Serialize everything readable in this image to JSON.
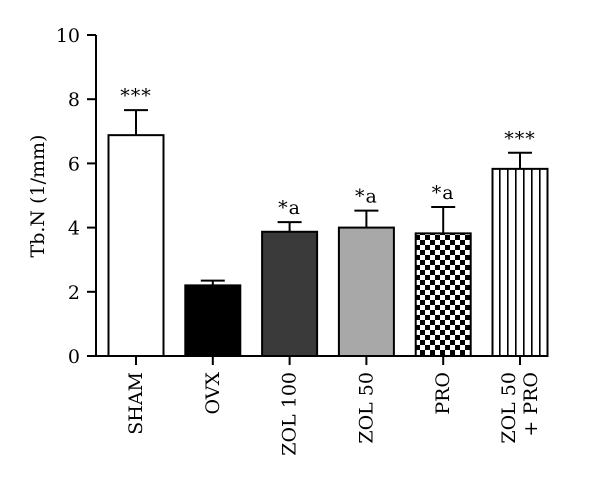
{
  "chart_data": {
    "type": "bar",
    "title": "",
    "xlabel": "",
    "ylabel": "Tb.N (1/mm)",
    "ylim": [
      0,
      10
    ],
    "yticks": [
      0,
      2,
      4,
      6,
      8,
      10
    ],
    "grid": false,
    "legend": "none",
    "categories": [
      [
        "SHAM"
      ],
      [
        "OVX"
      ],
      [
        "ZOL 100"
      ],
      [
        "ZOL 50"
      ],
      [
        "PRO"
      ],
      [
        "ZOL 50",
        "+ PRO"
      ]
    ],
    "series": [
      {
        "values": [
          6.88,
          2.2,
          3.87,
          4.0,
          3.82,
          5.83
        ],
        "errors": [
          0.78,
          0.15,
          0.3,
          0.53,
          0.82,
          0.5
        ],
        "annotations": [
          "***",
          "",
          "*a",
          "*a",
          "*a",
          "***"
        ],
        "fills": [
          "white",
          "black",
          "dark-gray",
          "light-gray",
          "checkerboard",
          "vertical-stripes"
        ]
      }
    ]
  },
  "colors": {
    "black": "#000000",
    "dark_gray": "#3a3a3a",
    "light_gray": "#a8a8a8",
    "white": "#ffffff"
  }
}
